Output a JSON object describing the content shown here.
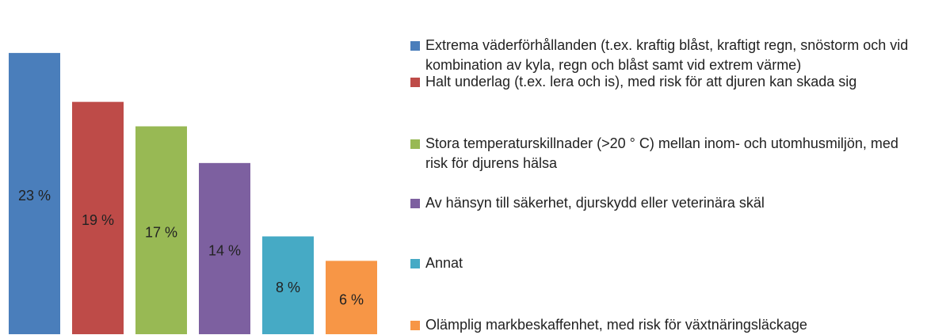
{
  "chart_data": {
    "type": "bar",
    "series": [
      {
        "name": "Extrema väderförhållanden (t.ex. kraftig blåst, kraftigt regn, snöstorm och vid kombination av kyla, regn och blåst samt vid extrem värme)",
        "color": "#4a7ebb",
        "values": [
          23
        ],
        "value_labels": [
          "23 %"
        ]
      },
      {
        "name": "Halt underlag (t.ex. lera och is), med risk för att djuren kan skada sig",
        "color": "#be4b48",
        "values": [
          19
        ],
        "value_labels": [
          "19 %"
        ]
      },
      {
        "name": "Stora temperaturskillnader (>20 ° C) mellan inom- och utomhusmiljön, med risk för djurens hälsa",
        "color": "#98b954",
        "values": [
          17
        ],
        "value_labels": [
          "17 %"
        ]
      },
      {
        "name": "Av hänsyn till säkerhet, djurskydd eller veterinära skäl",
        "color": "#7d60a0",
        "values": [
          14
        ],
        "value_labels": [
          "14 %"
        ]
      },
      {
        "name": "Annat",
        "color": "#46aac5",
        "values": [
          8
        ],
        "value_labels": [
          "8 %"
        ]
      },
      {
        "name": "Olämplig markbeskaffenhet, med risk för växtnäringsläckage",
        "color": "#f79646",
        "values": [
          6
        ],
        "value_labels": [
          "6 %"
        ]
      }
    ],
    "ylim": [
      0,
      25
    ]
  }
}
